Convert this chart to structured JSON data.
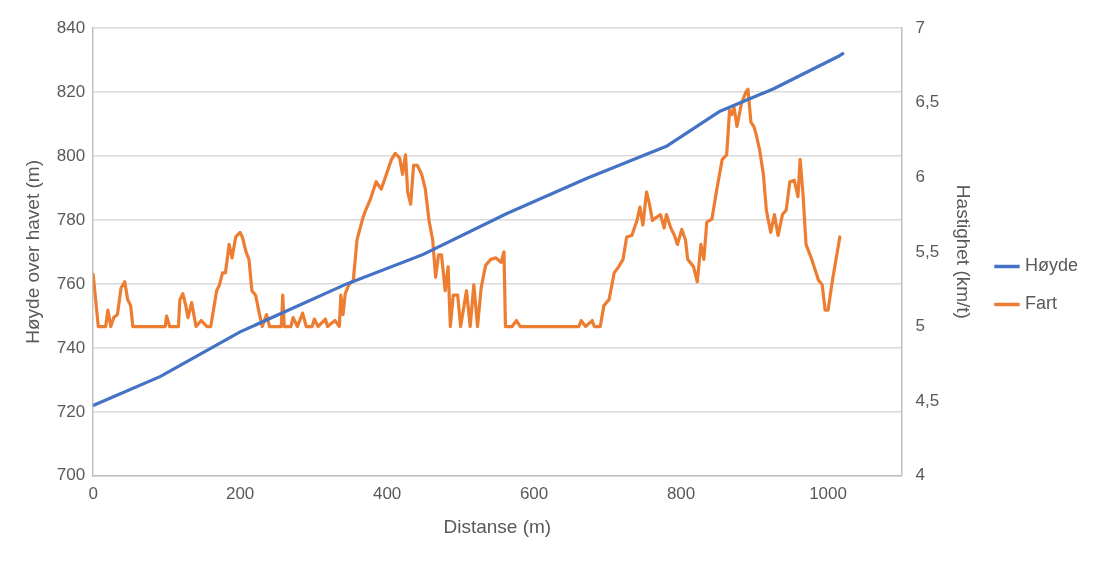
{
  "chart_data": {
    "type": "line",
    "xlabel": "Distanse (m)",
    "ylabel": "Høyde over havet (m)",
    "y2label": "Hastighet (km/t)",
    "xlim": [
      0,
      1100
    ],
    "xticks": [
      0,
      200,
      400,
      600,
      800,
      1000
    ],
    "ylim": [
      700,
      840
    ],
    "yticks": [
      700,
      720,
      740,
      760,
      780,
      800,
      820,
      840
    ],
    "y2lim": [
      4,
      7
    ],
    "y2ticks": [
      4,
      {
        "value": 4.5,
        "label": "4,5"
      },
      5,
      {
        "value": 5.5,
        "label": "5,5"
      },
      6,
      {
        "value": 6.5,
        "label": "6,5"
      },
      7
    ],
    "grid": "y",
    "legend": "right",
    "marker": "none",
    "line_style": "solid",
    "series": [
      {
        "name": "Høyde",
        "color": "#4472c4",
        "x": [
          0,
          91,
          200,
          345,
          447,
          563,
          672,
          780,
          853,
          926,
          1013,
          1020
        ],
        "values": [
          722,
          731,
          745,
          760,
          769,
          782,
          793,
          803,
          814,
          821,
          831,
          832
        ]
      },
      {
        "name": "Fart",
        "color": "#ed7d31",
        "axis": "y2",
        "x": [
          0,
          7,
          17,
          20,
          24,
          28,
          33,
          38,
          43,
          47,
          51,
          54,
          98,
          100,
          104,
          116,
          118,
          122,
          126,
          129,
          134,
          140,
          147,
          155,
          160,
          168,
          172,
          176,
          180,
          185,
          189,
          194,
          200,
          203,
          208,
          212,
          216,
          221,
          226,
          230,
          236,
          240,
          256,
          258,
          260,
          269,
          272,
          278,
          285,
          290,
          298,
          301,
          306,
          316,
          319,
          329,
          335,
          337,
          340,
          343,
          348,
          354,
          359,
          366,
          370,
          377,
          385,
          392,
          399,
          406,
          411,
          417,
          421,
          425,
          428,
          432,
          436,
          441,
          447,
          452,
          457,
          462,
          466,
          470,
          474,
          479,
          483,
          486,
          490,
          496,
          500,
          508,
          513,
          518,
          523,
          528,
          534,
          541,
          548,
          555,
          559,
          561,
          570,
          576,
          581,
          661,
          664,
          670,
          679,
          682,
          690,
          695,
          702,
          709,
          715,
          721,
          726,
          733,
          740,
          744,
          748,
          753,
          757,
          761,
          766,
          772,
          777,
          780,
          786,
          791,
          795,
          801,
          806,
          809,
          817,
          822,
          827,
          831,
          835,
          842,
          849,
          856,
          862,
          866,
          869,
          872,
          876,
          882,
          888,
          891,
          895,
          899,
          902,
          907,
          912,
          916,
          922,
          927,
          932,
          938,
          943,
          948,
          954,
          959,
          962,
          966,
          970,
          977,
          987,
          992,
          996,
          1000,
          1006,
          1016
        ],
        "values": [
          5.35,
          5.0,
          5.0,
          5.11,
          5.0,
          5.06,
          5.08,
          5.26,
          5.3,
          5.18,
          5.14,
          5.0,
          5.0,
          5.07,
          5.0,
          5.0,
          5.18,
          5.22,
          5.14,
          5.06,
          5.16,
          5.0,
          5.04,
          5.0,
          5.0,
          5.24,
          5.28,
          5.36,
          5.36,
          5.55,
          5.46,
          5.6,
          5.63,
          5.6,
          5.5,
          5.45,
          5.24,
          5.21,
          5.09,
          5.0,
          5.08,
          5.0,
          5.0,
          5.21,
          5.0,
          5.0,
          5.06,
          5.0,
          5.09,
          5.0,
          5.0,
          5.05,
          5.0,
          5.05,
          5.0,
          5.04,
          5.0,
          5.21,
          5.08,
          5.22,
          5.28,
          5.31,
          5.58,
          5.71,
          5.77,
          5.85,
          5.97,
          5.92,
          6.02,
          6.12,
          6.16,
          6.13,
          6.02,
          6.15,
          5.9,
          5.82,
          6.08,
          6.08,
          6.02,
          5.92,
          5.71,
          5.58,
          5.33,
          5.48,
          5.48,
          5.24,
          5.4,
          5.0,
          5.21,
          5.21,
          5.0,
          5.24,
          5.0,
          5.28,
          5.0,
          5.26,
          5.41,
          5.45,
          5.46,
          5.43,
          5.5,
          5.0,
          5.0,
          5.04,
          5.0,
          5.0,
          5.04,
          5.0,
          5.04,
          5.0,
          5.0,
          5.14,
          5.18,
          5.36,
          5.4,
          5.45,
          5.6,
          5.61,
          5.71,
          5.8,
          5.68,
          5.9,
          5.82,
          5.71,
          5.73,
          5.75,
          5.66,
          5.75,
          5.66,
          5.61,
          5.55,
          5.65,
          5.58,
          5.45,
          5.4,
          5.3,
          5.55,
          5.45,
          5.7,
          5.72,
          5.93,
          6.12,
          6.15,
          6.45,
          6.42,
          6.47,
          6.34,
          6.49,
          6.57,
          6.59,
          6.37,
          6.34,
          6.29,
          6.18,
          6.02,
          5.78,
          5.63,
          5.75,
          5.61,
          5.75,
          5.78,
          5.97,
          5.98,
          5.87,
          6.12,
          5.88,
          5.55,
          5.46,
          5.31,
          5.28,
          5.11,
          5.11,
          5.31,
          5.6
        ]
      }
    ]
  }
}
